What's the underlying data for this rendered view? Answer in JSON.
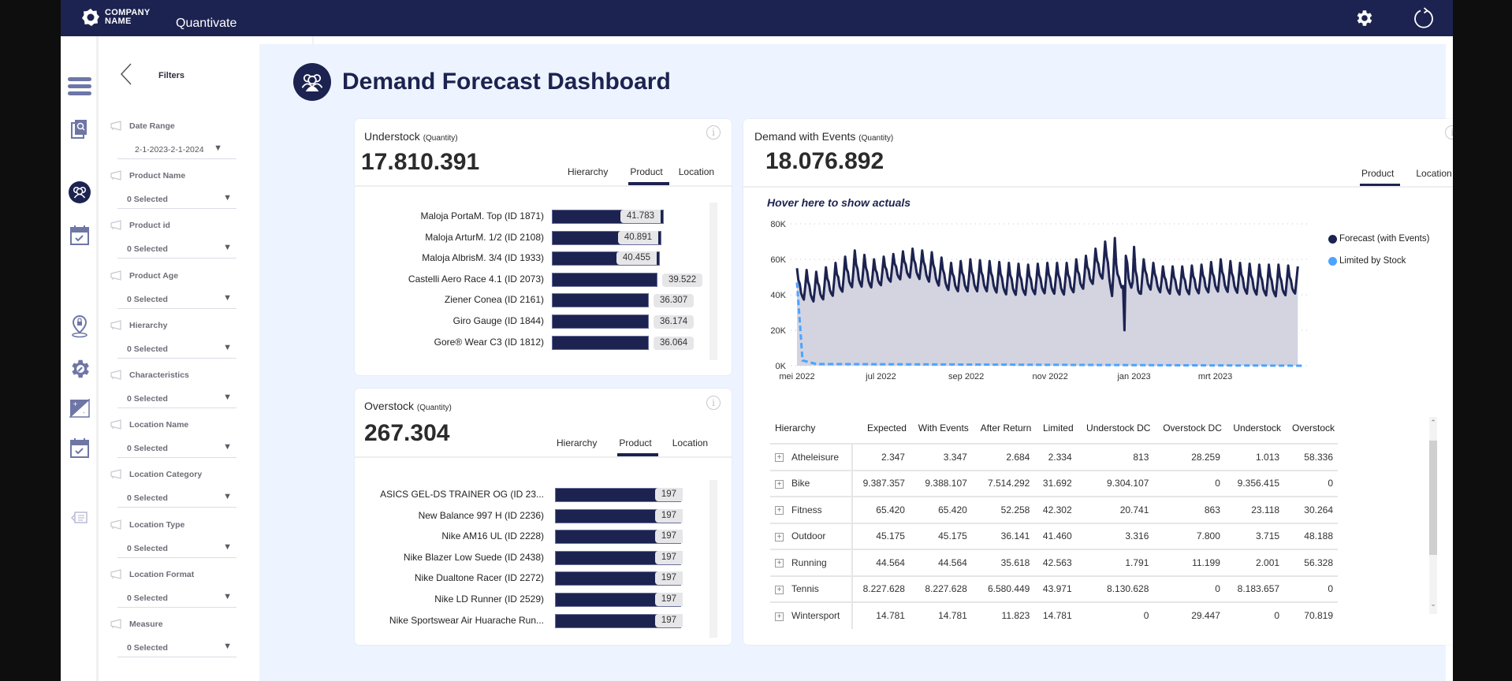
{
  "topbar": {
    "company_line1": "COMPANY",
    "company_line2": "NAME",
    "app_name": "Quantivate",
    "icons": [
      "settings-gear-icon",
      "refresh-icon"
    ]
  },
  "rail": {
    "icons": [
      "menu-icon",
      "document-search-icon",
      "users-group-icon",
      "calendar-check-icon",
      "location-pin-icon",
      "gear-wrench-icon",
      "plus-minus-icon",
      "calendar-check-icon",
      "presentation-icon"
    ]
  },
  "filters": {
    "title": "Filters",
    "items": [
      {
        "label": "Date Range",
        "value": "2-1-2023-2-1-2024"
      },
      {
        "label": "Product Name",
        "value": "0 Selected"
      },
      {
        "label": "Product id",
        "value": "0 Selected"
      },
      {
        "label": "Product Age",
        "value": "0 Selected"
      },
      {
        "label": "Hierarchy",
        "value": "0 Selected"
      },
      {
        "label": "Characteristics",
        "value": "0 Selected"
      },
      {
        "label": "Location Name",
        "value": "0 Selected"
      },
      {
        "label": "Location Category",
        "value": "0 Selected"
      },
      {
        "label": "Location Type",
        "value": "0 Selected"
      },
      {
        "label": "Location Format",
        "value": "0 Selected"
      },
      {
        "label": "Measure",
        "value": "0 Selected"
      }
    ]
  },
  "page": {
    "title": "Demand Forecast Dashboard"
  },
  "understock": {
    "title": "Understock",
    "unit": "(Quantity)",
    "value": "17.810.391",
    "tabs": [
      "Hierarchy",
      "Product",
      "Location"
    ],
    "active_tab": "Product",
    "items": [
      {
        "label": "Maloja PortaM. Top (ID 1871)",
        "value": 41783,
        "display": "41.783"
      },
      {
        "label": "Maloja ArturM. 1/2 (ID 2108)",
        "value": 40891,
        "display": "40.891"
      },
      {
        "label": "Maloja AlbrisM. 3/4 (ID 1933)",
        "value": 40455,
        "display": "40.455"
      },
      {
        "label": "Castelli Aero Race 4.1 (ID 2073)",
        "value": 39522,
        "display": "39.522"
      },
      {
        "label": "Ziener Conea (ID 2161)",
        "value": 36307,
        "display": "36.307"
      },
      {
        "label": "Giro Gauge (ID 1844)",
        "value": 36174,
        "display": "36.174"
      },
      {
        "label": "Gore® Wear C3 (ID 1812)",
        "value": 36064,
        "display": "36.064"
      }
    ]
  },
  "overstock": {
    "title": "Overstock",
    "unit": "(Quantity)",
    "value": "267.304",
    "tabs": [
      "Hierarchy",
      "Product",
      "Location"
    ],
    "active_tab": "Product",
    "items": [
      {
        "label": "ASICS GEL-DS TRAINER OG (ID 23...",
        "value": 197,
        "display": "197"
      },
      {
        "label": "New Balance 997 H (ID 2236)",
        "value": 197,
        "display": "197"
      },
      {
        "label": "Nike AM16 UL (ID 2228)",
        "value": 197,
        "display": "197"
      },
      {
        "label": "Nike Blazer Low Suede (ID 2438)",
        "value": 197,
        "display": "197"
      },
      {
        "label": "Nike Dualtone Racer (ID 2272)",
        "value": 197,
        "display": "197"
      },
      {
        "label": "Nike LD Runner (ID 2529)",
        "value": 197,
        "display": "197"
      },
      {
        "label": "Nike Sportswear Air Huarache Run...",
        "value": 197,
        "display": "197"
      }
    ]
  },
  "demand": {
    "title": "Demand with Events",
    "unit": "(Quantity)",
    "value": "18.076.892",
    "tabs": [
      "Product",
      "Location"
    ],
    "active_tab": "Product",
    "hover_hint": "Hover here to show actuals",
    "legend": [
      {
        "label": "Forecast (with Events)",
        "color": "#1c2350"
      },
      {
        "label": "Limited by Stock",
        "color": "#4da3ff"
      }
    ]
  },
  "chart_data": {
    "type": "line",
    "title": "Demand with Events (Quantity)",
    "xlabel": "",
    "ylabel": "",
    "x_ticks": [
      "mei 2022",
      "jul 2022",
      "sep 2022",
      "nov 2022",
      "jan 2023",
      "mrt 2023"
    ],
    "y_ticks": [
      "0K",
      "20K",
      "40K",
      "60K",
      "80K"
    ],
    "ylim": [
      0,
      80000
    ],
    "x_range": [
      "2022-05-01",
      "2023-05-05"
    ],
    "grid": true,
    "legend_position": "right",
    "series": [
      {
        "name": "Forecast (with Events)",
        "style": "solid-with-area",
        "description": "Daily forecast with weekly seasonality oscillating between ~40K and ~60K; peaks near 75K in Dec 2022; one-day dip to ~20K around 2022-12-25",
        "weekly_points": [
          [
            "2022-05-01",
            55000,
            38000
          ],
          [
            "2022-05-15",
            53000,
            36000
          ],
          [
            "2022-05-29",
            58000,
            40000
          ],
          [
            "2022-06-12",
            65000,
            45000
          ],
          [
            "2022-06-26",
            60000,
            44000
          ],
          [
            "2022-07-10",
            63000,
            48000
          ],
          [
            "2022-07-24",
            66000,
            50000
          ],
          [
            "2022-08-07",
            64000,
            47000
          ],
          [
            "2022-08-21",
            58000,
            42000
          ],
          [
            "2022-09-04",
            60000,
            42000
          ],
          [
            "2022-09-18",
            59000,
            42000
          ],
          [
            "2022-10-02",
            58000,
            40000
          ],
          [
            "2022-10-16",
            57000,
            40000
          ],
          [
            "2022-10-30",
            58000,
            41000
          ],
          [
            "2022-11-13",
            58000,
            40000
          ],
          [
            "2022-11-27",
            62000,
            44000
          ],
          [
            "2022-12-11",
            70000,
            50000
          ],
          [
            "2022-12-25",
            74000,
            20000
          ],
          [
            "2023-01-08",
            60000,
            44000
          ],
          [
            "2023-01-22",
            56000,
            41000
          ],
          [
            "2023-02-05",
            56000,
            40000
          ],
          [
            "2023-02-19",
            57000,
            41000
          ],
          [
            "2023-03-05",
            60000,
            42000
          ],
          [
            "2023-03-19",
            58000,
            41000
          ],
          [
            "2023-04-02",
            57000,
            40000
          ],
          [
            "2023-04-16",
            57000,
            39000
          ],
          [
            "2023-04-30",
            56000,
            41000
          ]
        ]
      },
      {
        "name": "Limited by Stock",
        "style": "dashed",
        "points": [
          [
            "2022-05-01",
            47000
          ],
          [
            "2022-05-05",
            3000
          ],
          [
            "2022-05-15",
            1000
          ],
          [
            "2023-05-05",
            0
          ]
        ]
      }
    ]
  },
  "table": {
    "columns": [
      "Hierarchy",
      "Expected",
      "With Events",
      "After Return",
      "Limited",
      "Understock DC",
      "Overstock DC",
      "Understock",
      "Overstock"
    ],
    "rows": [
      [
        "Atheleisure",
        "2.347",
        "3.347",
        "2.684",
        "2.334",
        "813",
        "28.259",
        "1.013",
        "58.336"
      ],
      [
        "Bike",
        "9.387.357",
        "9.388.107",
        "7.514.292",
        "31.692",
        "9.304.107",
        "0",
        "9.356.415",
        "0"
      ],
      [
        "Fitness",
        "65.420",
        "65.420",
        "52.258",
        "42.302",
        "20.741",
        "863",
        "23.118",
        "30.264"
      ],
      [
        "Outdoor",
        "45.175",
        "45.175",
        "36.141",
        "41.460",
        "3.316",
        "7.800",
        "3.715",
        "48.188"
      ],
      [
        "Running",
        "44.564",
        "44.564",
        "35.618",
        "42.563",
        "1.791",
        "11.199",
        "2.001",
        "56.328"
      ],
      [
        "Tennis",
        "8.227.628",
        "8.227.628",
        "6.580.449",
        "43.971",
        "8.130.628",
        "0",
        "8.183.657",
        "0"
      ],
      [
        "Wintersport",
        "14.781",
        "14.781",
        "11.823",
        "14.781",
        "0",
        "29.447",
        "0",
        "70.819"
      ]
    ]
  },
  "colors": {
    "brand": "#1c2350",
    "accent_light": "#4da3ff",
    "page_bg": "#edf4ff",
    "area_fill": "#d3d4e0"
  }
}
